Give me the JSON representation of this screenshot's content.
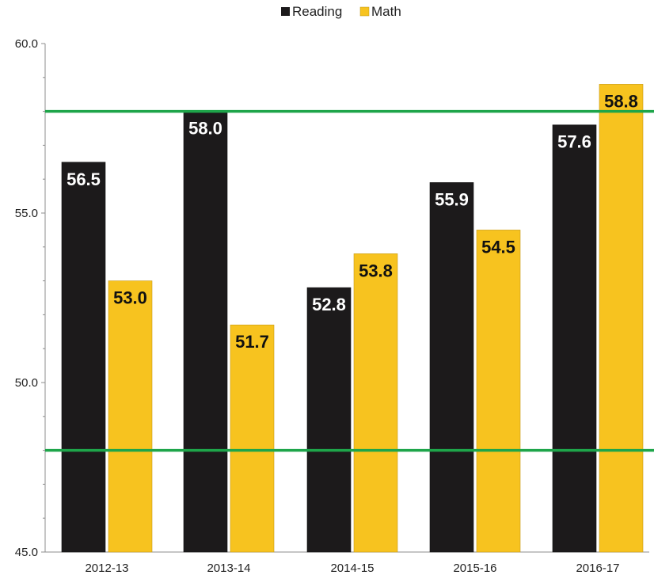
{
  "chart_data": {
    "type": "bar",
    "title": "",
    "xlabel": "",
    "ylabel": "",
    "categories": [
      "2012-13",
      "2013-14",
      "2014-15",
      "2015-16",
      "2016-17"
    ],
    "series": [
      {
        "name": "Reading",
        "color": "#1c1a1b",
        "values": [
          56.5,
          58.0,
          52.8,
          55.9,
          57.6
        ],
        "labels": [
          "56.5",
          "58.0",
          "52.8",
          "55.9",
          "57.6"
        ]
      },
      {
        "name": "Math",
        "color": "#f7c31f",
        "values": [
          53.0,
          51.7,
          53.8,
          54.5,
          58.8
        ],
        "labels": [
          "53.0",
          "51.7",
          "53.8",
          "54.5",
          "58.8"
        ]
      }
    ],
    "ylim": [
      45.0,
      60.0
    ],
    "yticks": [
      45.0,
      50.0,
      55.0,
      60.0
    ],
    "ytick_labels": [
      "45.0",
      "50.0",
      "55.0",
      "60.0"
    ],
    "reference_lines": [
      {
        "value": 58.0,
        "color": "#1ea54a"
      },
      {
        "value": 48.0,
        "color": "#1ea54a"
      }
    ],
    "grid": false,
    "legend_position": "top-center"
  }
}
